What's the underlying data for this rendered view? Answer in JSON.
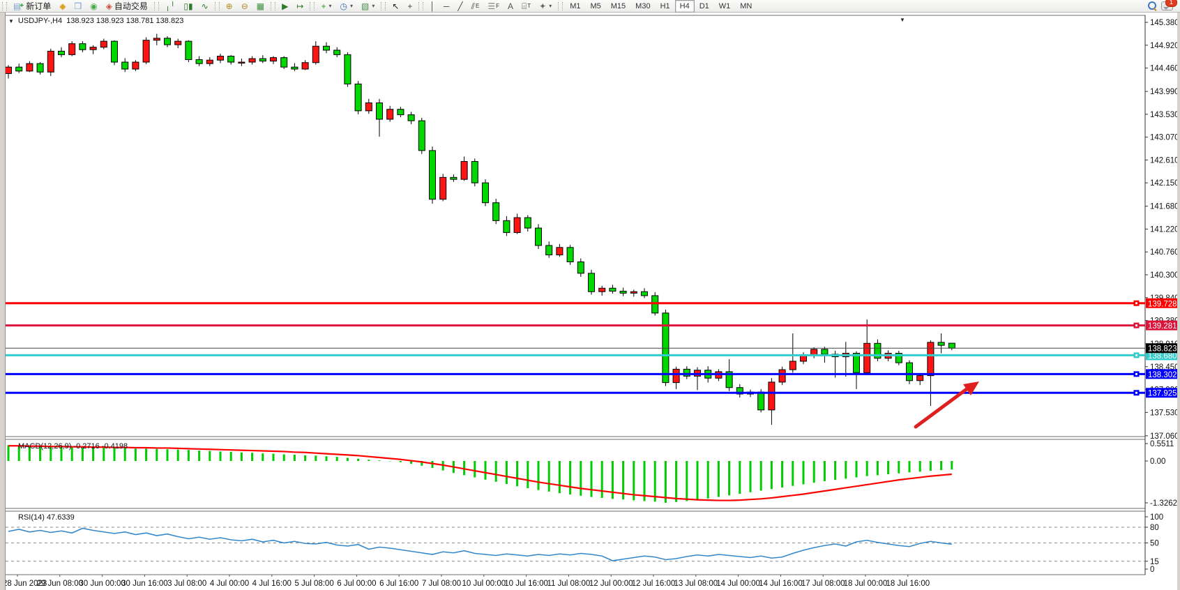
{
  "window": {
    "title": "MetaTrader chart window"
  },
  "toolbar": {
    "groups": [
      {
        "name": "standard",
        "items": [
          {
            "name": "new-order-button",
            "icon": "doc-plus-icon",
            "glyph": "▤",
            "color": "#7aa0c8",
            "plus": "+",
            "label": "新订单"
          },
          {
            "name": "market-watch-button",
            "icon": "book-icon",
            "glyph": "◆",
            "color": "#d9a62e"
          },
          {
            "name": "navigator-button",
            "icon": "window-icon",
            "glyph": "❒",
            "color": "#6f9bd1"
          },
          {
            "name": "refresh-button",
            "icon": "signal-icon",
            "glyph": "◉",
            "color": "#49a84c"
          },
          {
            "name": "autotrading-button",
            "icon": "autotrading-icon",
            "glyph": "◈",
            "color": "#cf4a3c",
            "label": "自动交易"
          }
        ]
      },
      {
        "name": "chart-types",
        "items": [
          {
            "name": "bar-chart-button",
            "icon": "ohlc-bars-icon",
            "glyph": "╷╵",
            "color": "#2c7a2c"
          },
          {
            "name": "candlestick-button",
            "icon": "candlestick-icon",
            "glyph": "▯▮",
            "color": "#2c7a2c"
          },
          {
            "name": "line-chart-button",
            "icon": "line-chart-icon",
            "glyph": "∿",
            "color": "#2c7a2c"
          }
        ]
      },
      {
        "name": "zoom",
        "items": [
          {
            "name": "zoom-in-button",
            "icon": "zoom-in-icon",
            "glyph": "⊕",
            "color": "#b08c1e"
          },
          {
            "name": "zoom-out-button",
            "icon": "zoom-out-icon",
            "glyph": "⊖",
            "color": "#b08c1e"
          },
          {
            "name": "tile-windows-button",
            "icon": "tile-windows-icon",
            "glyph": "▦",
            "color": "#3f8f3f"
          }
        ]
      },
      {
        "name": "scrolling",
        "items": [
          {
            "name": "auto-scroll-button",
            "icon": "auto-scroll-icon",
            "glyph": "▶",
            "color": "#2c7a2c"
          },
          {
            "name": "chart-shift-button",
            "icon": "chart-shift-icon",
            "glyph": "↦",
            "color": "#2c7a2c"
          }
        ]
      },
      {
        "name": "insert",
        "items": [
          {
            "name": "indicators-button",
            "icon": "indicators-icon",
            "glyph": "+",
            "color": "#2c9a2c",
            "dropdown": "▾"
          },
          {
            "name": "periods-button",
            "icon": "clock-icon",
            "glyph": "◷",
            "color": "#3a6fae",
            "dropdown": "▾"
          },
          {
            "name": "templates-button",
            "icon": "template-icon",
            "glyph": "▧",
            "color": "#4a8f4a",
            "dropdown": "▾"
          }
        ]
      },
      {
        "name": "pointer",
        "items": [
          {
            "name": "cursor-button",
            "icon": "cursor-arrow-icon",
            "glyph": "↖",
            "color": "#222"
          },
          {
            "name": "crosshair-button",
            "icon": "crosshair-icon",
            "glyph": "+",
            "color": "#444"
          }
        ]
      },
      {
        "name": "objects",
        "items": [
          {
            "name": "vertical-line-button",
            "icon": "vertical-line-icon",
            "glyph": "│",
            "color": "#444"
          },
          {
            "name": "horizontal-line-button",
            "icon": "horizontal-line-icon",
            "glyph": "─",
            "color": "#444"
          },
          {
            "name": "trendline-button",
            "icon": "trendline-icon",
            "glyph": "╱",
            "color": "#444"
          },
          {
            "name": "channel-button",
            "icon": "channel-icon",
            "glyph": "⫽",
            "sub": "E",
            "color": "#444"
          },
          {
            "name": "fibonacci-button",
            "icon": "fibonacci-icon",
            "glyph": "☰",
            "sub": "F",
            "color": "#888"
          },
          {
            "name": "text-button",
            "icon": "text-icon",
            "glyph": "A",
            "color": "#555"
          },
          {
            "name": "text-label-button",
            "icon": "text-label-icon",
            "glyph": "⌸",
            "sub": "T",
            "color": "#555"
          },
          {
            "name": "arrows-button",
            "icon": "shapes-icon",
            "glyph": "✦",
            "color": "#666",
            "dropdown": "▾"
          }
        ]
      }
    ],
    "timeframes": [
      "M1",
      "M5",
      "M15",
      "M30",
      "H1",
      "H4",
      "D1",
      "W1",
      "MN"
    ],
    "active_timeframe": "H4",
    "search_icon": "magnifier-icon",
    "notifications": {
      "icon": "chat-bubble-icon",
      "badge": "1"
    }
  },
  "chart": {
    "expander_glyph": "▼",
    "symbol_period": "USDJPY-,H4",
    "ohlc_text": "138.923 138.923 138.781 138.823",
    "bid_label": "138.823",
    "shift_marker_glyph": "▼"
  },
  "macd_panel": {
    "label": "MACD(12,26,9) -0.2716 -0.4198",
    "ticks": [
      "0.5511",
      "0.00",
      "-1.3262"
    ]
  },
  "rsi_panel": {
    "label": "RSI(14) 47.6339",
    "ticks": [
      "100",
      "80",
      "50",
      "15",
      "0"
    ]
  },
  "colors": {
    "bull": "#ff1414",
    "bear": "#00d800",
    "candle_stroke": "#000000",
    "line_red": "#ff0000",
    "line_crimson": "#dc143c",
    "line_teal": "#33cccc",
    "line_blue": "#0000ff",
    "bid_line": "#444444",
    "bid_box": "#000000",
    "macd_hist": "#00cc00",
    "macd_signal": "#ff0000",
    "rsi_line": "#3388cc",
    "arrow": "#e02020",
    "axis_text": "#111111"
  },
  "chart_data": [
    {
      "type": "candlestick",
      "title": "USDJPY- H4",
      "ylim": [
        137.06,
        145.52
      ],
      "y_ticks": [
        145.38,
        144.92,
        144.46,
        143.99,
        143.53,
        143.07,
        142.61,
        142.15,
        141.68,
        141.22,
        140.76,
        140.3,
        139.84,
        139.38,
        138.91,
        138.45,
        137.99,
        137.53,
        137.06
      ],
      "x_labels": [
        "28 Jun 2023",
        "29 Jun 08:00",
        "30 Jun 00:00",
        "30 Jun 16:00",
        "3 Jul 08:00",
        "4 Jul 00:00",
        "4 Jul 16:00",
        "5 Jul 08:00",
        "6 Jul 00:00",
        "6 Jul 16:00",
        "7 Jul 08:00",
        "10 Jul 00:00",
        "10 Jul 16:00",
        "11 Jul 08:00",
        "12 Jul 00:00",
        "12 Jul 16:00",
        "13 Jul 08:00",
        "14 Jul 00:00",
        "14 Jul 16:00",
        "17 Jul 08:00",
        "18 Jul 00:00",
        "18 Jul 16:00"
      ],
      "hlines": [
        {
          "price": 139.728,
          "label": "139.728",
          "color": "#ff0000"
        },
        {
          "price": 139.281,
          "label": "139.281",
          "color": "#dc143c"
        },
        {
          "price": 138.68,
          "label": "138.680",
          "color": "#33cccc"
        },
        {
          "price": 138.302,
          "label": "138.302",
          "color": "#0000ff"
        },
        {
          "price": 137.925,
          "label": "137.925",
          "color": "#0000ff"
        }
      ],
      "bid": 138.823,
      "open": [
        144.35,
        144.48,
        144.4,
        144.55,
        144.38,
        144.8,
        144.73,
        144.95,
        144.83,
        144.88,
        145.0,
        144.58,
        144.44,
        144.58,
        145.02,
        145.06,
        144.93,
        145.0,
        144.63,
        144.55,
        144.62,
        144.7,
        144.58,
        144.58,
        144.65,
        144.6,
        144.67,
        144.48,
        144.44,
        144.57,
        144.9,
        144.82,
        144.73,
        144.14,
        143.6,
        143.76,
        143.43,
        143.63,
        143.52,
        143.4,
        142.8,
        141.82,
        142.26,
        142.22,
        142.58,
        142.15,
        141.75,
        141.39,
        141.15,
        141.45,
        141.24,
        140.89,
        140.7,
        140.85,
        140.56,
        140.33,
        139.96,
        140.03,
        139.97,
        139.93,
        139.96,
        139.88,
        139.53,
        138.13,
        138.4,
        138.26,
        138.38,
        138.22,
        138.35,
        138.03,
        137.9,
        137.94,
        137.58,
        138.14,
        138.39,
        138.56,
        138.68,
        138.8,
        138.7,
        138.65,
        138.72,
        138.33,
        138.92,
        138.62,
        138.72,
        138.53,
        138.17,
        138.27,
        138.94,
        138.923
      ],
      "high": [
        144.52,
        144.55,
        144.6,
        144.58,
        144.85,
        144.88,
        145.0,
        145.0,
        144.92,
        145.05,
        145.02,
        144.66,
        144.62,
        145.08,
        145.15,
        145.1,
        145.05,
        145.02,
        144.7,
        144.68,
        144.75,
        144.72,
        144.65,
        144.7,
        144.72,
        144.7,
        144.7,
        144.56,
        144.62,
        145.0,
        144.98,
        144.88,
        144.78,
        144.2,
        143.84,
        143.84,
        143.7,
        143.68,
        143.58,
        143.46,
        142.88,
        142.33,
        142.32,
        142.68,
        142.64,
        142.22,
        141.83,
        141.48,
        141.53,
        141.5,
        141.32,
        140.97,
        140.92,
        140.9,
        140.63,
        140.4,
        140.08,
        140.1,
        140.04,
        140.0,
        140.03,
        139.95,
        139.6,
        138.45,
        138.46,
        138.44,
        138.46,
        138.4,
        138.6,
        138.1,
        137.99,
        138.0,
        138.22,
        138.45,
        139.12,
        138.74,
        138.84,
        138.85,
        138.77,
        138.95,
        138.76,
        139.4,
        139.0,
        138.78,
        138.77,
        138.58,
        138.3,
        138.98,
        139.12,
        138.923
      ],
      "low": [
        144.25,
        144.36,
        144.38,
        144.33,
        144.3,
        144.68,
        144.7,
        144.78,
        144.74,
        144.84,
        144.52,
        144.38,
        144.4,
        144.54,
        144.92,
        144.88,
        144.86,
        144.58,
        144.5,
        144.5,
        144.56,
        144.53,
        144.5,
        144.53,
        144.56,
        144.54,
        144.44,
        144.4,
        144.42,
        144.53,
        144.76,
        144.68,
        144.08,
        143.53,
        143.54,
        143.08,
        143.38,
        143.47,
        143.33,
        142.73,
        141.73,
        141.78,
        142.17,
        142.19,
        142.08,
        141.68,
        141.32,
        141.08,
        141.12,
        141.17,
        140.82,
        140.64,
        140.66,
        140.5,
        140.26,
        139.9,
        139.88,
        139.92,
        139.87,
        139.86,
        139.83,
        139.48,
        138.06,
        138.0,
        138.2,
        137.98,
        138.13,
        138.16,
        137.96,
        137.83,
        137.84,
        137.53,
        137.28,
        138.08,
        138.33,
        138.5,
        138.62,
        138.53,
        138.23,
        138.25,
        138.0,
        138.28,
        138.56,
        138.56,
        138.48,
        138.1,
        138.08,
        137.66,
        138.72,
        138.781
      ],
      "close": [
        144.48,
        144.4,
        144.55,
        144.38,
        144.8,
        144.73,
        144.95,
        144.83,
        144.88,
        145.0,
        144.58,
        144.44,
        144.58,
        145.02,
        145.06,
        144.93,
        145.0,
        144.63,
        144.55,
        144.62,
        144.7,
        144.58,
        144.58,
        144.65,
        144.6,
        144.67,
        144.48,
        144.44,
        144.57,
        144.9,
        144.82,
        144.73,
        144.14,
        143.6,
        143.76,
        143.43,
        143.63,
        143.52,
        143.4,
        142.8,
        141.82,
        142.26,
        142.22,
        142.58,
        142.15,
        141.75,
        141.39,
        141.15,
        141.45,
        141.24,
        140.89,
        140.7,
        140.85,
        140.56,
        140.33,
        139.96,
        140.03,
        139.97,
        139.93,
        139.96,
        139.88,
        139.53,
        138.13,
        138.4,
        138.26,
        138.38,
        138.22,
        138.35,
        138.03,
        137.9,
        137.94,
        137.58,
        138.14,
        138.39,
        138.56,
        138.68,
        138.8,
        138.7,
        138.65,
        138.72,
        138.33,
        138.92,
        138.62,
        138.72,
        138.53,
        138.17,
        138.27,
        138.94,
        138.88,
        138.823
      ]
    },
    {
      "type": "bar",
      "title": "MACD(12,26,9)",
      "current_macd": -0.2716,
      "current_signal": -0.4198,
      "ylim": [
        -1.3262,
        0.5511
      ],
      "histogram": [
        0.5,
        0.49,
        0.48,
        0.47,
        0.46,
        0.45,
        0.44,
        0.43,
        0.42,
        0.42,
        0.41,
        0.4,
        0.39,
        0.39,
        0.38,
        0.37,
        0.36,
        0.35,
        0.33,
        0.32,
        0.3,
        0.29,
        0.27,
        0.26,
        0.24,
        0.23,
        0.21,
        0.2,
        0.18,
        0.17,
        0.15,
        0.13,
        0.1,
        0.07,
        0.04,
        0.02,
        -0.01,
        -0.04,
        -0.09,
        -0.15,
        -0.22,
        -0.3,
        -0.38,
        -0.45,
        -0.52,
        -0.59,
        -0.66,
        -0.73,
        -0.8,
        -0.86,
        -0.92,
        -0.97,
        -1.02,
        -1.06,
        -1.1,
        -1.14,
        -1.17,
        -1.2,
        -1.22,
        -1.25,
        -1.27,
        -1.29,
        -1.3262,
        -1.3,
        -1.27,
        -1.23,
        -1.19,
        -1.14,
        -1.09,
        -1.04,
        -0.99,
        -0.94,
        -0.89,
        -0.84,
        -0.79,
        -0.74,
        -0.69,
        -0.64,
        -0.6,
        -0.56,
        -0.52,
        -0.48,
        -0.45,
        -0.42,
        -0.39,
        -0.36,
        -0.34,
        -0.31,
        -0.29,
        -0.2716
      ],
      "signal": [
        0.48,
        0.48,
        0.47,
        0.47,
        0.46,
        0.46,
        0.45,
        0.45,
        0.44,
        0.44,
        0.43,
        0.43,
        0.42,
        0.42,
        0.41,
        0.41,
        0.4,
        0.39,
        0.38,
        0.37,
        0.36,
        0.35,
        0.34,
        0.33,
        0.32,
        0.31,
        0.3,
        0.28,
        0.27,
        0.25,
        0.23,
        0.21,
        0.19,
        0.17,
        0.14,
        0.11,
        0.08,
        0.05,
        0.01,
        -0.03,
        -0.08,
        -0.13,
        -0.19,
        -0.25,
        -0.31,
        -0.37,
        -0.43,
        -0.49,
        -0.55,
        -0.61,
        -0.67,
        -0.72,
        -0.77,
        -0.82,
        -0.87,
        -0.91,
        -0.95,
        -0.99,
        -1.03,
        -1.07,
        -1.1,
        -1.13,
        -1.16,
        -1.19,
        -1.21,
        -1.23,
        -1.24,
        -1.25,
        -1.25,
        -1.24,
        -1.22,
        -1.2,
        -1.17,
        -1.13,
        -1.09,
        -1.05,
        -1.0,
        -0.95,
        -0.9,
        -0.85,
        -0.8,
        -0.75,
        -0.7,
        -0.65,
        -0.6,
        -0.56,
        -0.52,
        -0.48,
        -0.45,
        -0.4198
      ]
    },
    {
      "type": "line",
      "title": "RSI(14)",
      "current": 47.6339,
      "ylim": [
        0,
        100
      ],
      "levels": [
        80,
        50,
        15
      ],
      "values": [
        72,
        76,
        71,
        74,
        70,
        73,
        69,
        78,
        74,
        71,
        68,
        71,
        66,
        69,
        64,
        67,
        62,
        58,
        61,
        57,
        60,
        56,
        54,
        57,
        52,
        55,
        50,
        53,
        49,
        48,
        51,
        46,
        44,
        47,
        38,
        42,
        40,
        37,
        34,
        31,
        28,
        33,
        31,
        35,
        30,
        28,
        26,
        29,
        27,
        25,
        28,
        26,
        29,
        27,
        30,
        28,
        25,
        16,
        19,
        22,
        25,
        23,
        18,
        20,
        24,
        27,
        25,
        28,
        26,
        24,
        22,
        25,
        21,
        23,
        30,
        36,
        41,
        45,
        48,
        44,
        52,
        55,
        51,
        48,
        45,
        43,
        49,
        53,
        50,
        47.6
      ]
    }
  ]
}
